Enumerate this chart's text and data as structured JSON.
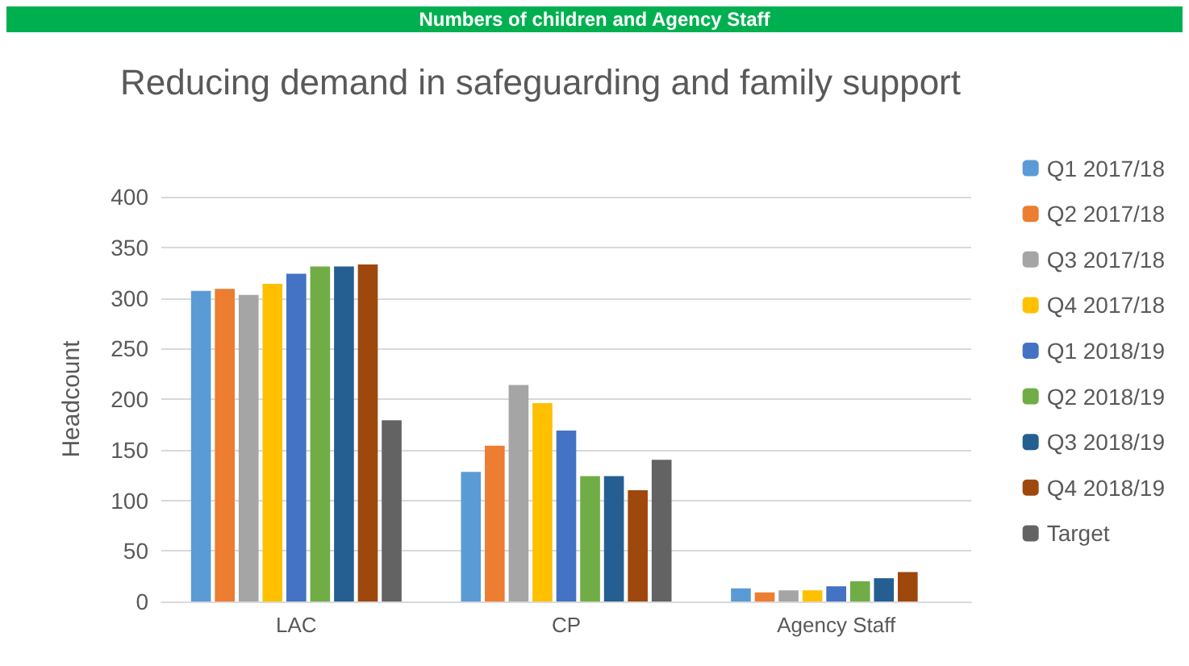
{
  "chart_data": {
    "type": "bar",
    "title": "Reducing demand in safeguarding and family support",
    "annotations": [
      "Numbers of children and Agency Staff"
    ],
    "ylabel": "Headcount",
    "categories": [
      "LAC",
      "CP",
      "Agency Staff"
    ],
    "series": [
      {
        "name": "Q1 2017/18",
        "color": "#5b9bd5",
        "values": [
          307,
          128,
          13
        ]
      },
      {
        "name": "Q2 2017/18",
        "color": "#ed7d31",
        "values": [
          309,
          154,
          9
        ]
      },
      {
        "name": "Q3 2017/18",
        "color": "#a5a5a5",
        "values": [
          303,
          214,
          11
        ]
      },
      {
        "name": "Q4 2017/18",
        "color": "#ffc000",
        "values": [
          314,
          196,
          11
        ]
      },
      {
        "name": "Q1 2018/19",
        "color": "#4472c4",
        "values": [
          324,
          169,
          15
        ]
      },
      {
        "name": "Q2 2018/19",
        "color": "#70ad47",
        "values": [
          331,
          124,
          20
        ]
      },
      {
        "name": "Q3 2018/19",
        "color": "#255e91",
        "values": [
          331,
          124,
          23
        ]
      },
      {
        "name": "Q4 2018/19",
        "color": "#9e480e",
        "values": [
          333,
          110,
          29
        ]
      },
      {
        "name": "Target",
        "color": "#636363",
        "values": [
          179,
          140,
          null
        ]
      }
    ],
    "ylim": [
      0,
      400
    ],
    "yticks": [
      0,
      50,
      100,
      150,
      200,
      250,
      300,
      350,
      400
    ],
    "grid": "y",
    "legend": "right"
  }
}
